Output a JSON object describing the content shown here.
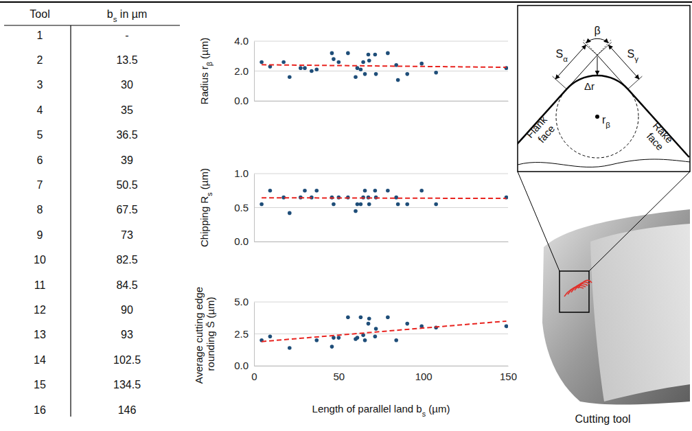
{
  "table": {
    "header": [
      "Tool",
      "bs in µm"
    ],
    "rows": [
      [
        "1",
        "-"
      ],
      [
        "2",
        "13.5"
      ],
      [
        "3",
        "30"
      ],
      [
        "4",
        "35"
      ],
      [
        "5",
        "36.5"
      ],
      [
        "6",
        "39"
      ],
      [
        "7",
        "50.5"
      ],
      [
        "8",
        "67.5"
      ],
      [
        "9",
        "73"
      ],
      [
        "10",
        "82.5"
      ],
      [
        "11",
        "84.5"
      ],
      [
        "12",
        "90"
      ],
      [
        "13",
        "93"
      ],
      [
        "14",
        "102.5"
      ],
      [
        "15",
        "134.5"
      ],
      [
        "16",
        "146"
      ]
    ]
  },
  "chart_data": [
    {
      "type": "scatter",
      "ylabel": "Radius rβ (µm)",
      "xlim": [
        0,
        150
      ],
      "ylim": [
        0,
        4
      ],
      "yticks": [
        {
          "value": 0,
          "label": "0.0"
        },
        {
          "value": 2,
          "label": "2.0"
        },
        {
          "value": 4,
          "label": "4.0"
        }
      ],
      "grid": true,
      "tick_labels": "y",
      "series": [
        {
          "type": "scatter",
          "marker": "circle",
          "color": "#1f4e79",
          "x": [
            4.5,
            9.5,
            17.5,
            21,
            27.5,
            30,
            34,
            37,
            46,
            47,
            50,
            55.5,
            60,
            61,
            63,
            64.5,
            65.5,
            67.5,
            68,
            71.5,
            72,
            79,
            84,
            85,
            90.5,
            99,
            107.5,
            149
          ],
          "values": [
            2.6,
            2.3,
            2.6,
            1.6,
            2.2,
            2.2,
            2.0,
            2.1,
            3.2,
            2.8,
            2.6,
            3.2,
            1.6,
            2.2,
            2.1,
            2.6,
            1.8,
            3.1,
            2.7,
            3.1,
            1.8,
            3.2,
            2.4,
            1.4,
            1.8,
            2.5,
            1.9,
            2.2
          ]
        },
        {
          "type": "line",
          "line_style": "dashed",
          "color": "#e8231f",
          "x": [
            4.5,
            149
          ],
          "values": [
            2.42,
            2.25
          ]
        }
      ]
    },
    {
      "type": "scatter",
      "ylabel": "Chipping Rs (µm)",
      "xlim": [
        0,
        150
      ],
      "ylim": [
        0,
        1
      ],
      "yticks": [
        {
          "value": 0,
          "label": "0.0"
        },
        0.5,
        {
          "value": 1,
          "label": "1.0"
        }
      ],
      "grid": true,
      "tick_labels": "y",
      "series": [
        {
          "type": "scatter",
          "marker": "circle",
          "color": "#1f4e79",
          "x": [
            4.5,
            9.5,
            17.5,
            21,
            27.5,
            30,
            34,
            37,
            46,
            47,
            50,
            55.5,
            60,
            61,
            63,
            64.5,
            65.5,
            67.5,
            68,
            71.5,
            72,
            79,
            84,
            85,
            90.5,
            99,
            107.5,
            149
          ],
          "values": [
            0.55,
            0.75,
            0.65,
            0.42,
            0.65,
            0.75,
            0.65,
            0.75,
            0.65,
            0.55,
            0.65,
            0.65,
            0.45,
            0.55,
            0.55,
            0.65,
            0.75,
            0.65,
            0.55,
            0.75,
            0.65,
            0.75,
            0.65,
            0.55,
            0.55,
            0.75,
            0.55,
            0.65
          ]
        },
        {
          "type": "line",
          "line_style": "dashed",
          "color": "#e8231f",
          "x": [
            4.5,
            149
          ],
          "values": [
            0.645,
            0.635
          ]
        }
      ]
    },
    {
      "type": "scatter",
      "ylabel": "Average cutting edge rounding S̄ (µm)",
      "xlabel": "Length of parallel land bs (µm)",
      "xlim": [
        0,
        150
      ],
      "xticks": [
        0,
        50,
        100,
        150
      ],
      "ylim": [
        0,
        5
      ],
      "yticks": [
        {
          "value": 0,
          "label": "0.0"
        },
        2.5,
        {
          "value": 5,
          "label": "5.0"
        }
      ],
      "grid": true,
      "series": [
        {
          "type": "scatter",
          "marker": "circle",
          "color": "#1f4e79",
          "x": [
            4.5,
            9.5,
            21,
            37,
            46,
            47,
            50,
            55.5,
            60,
            61,
            63,
            64.5,
            65.5,
            67.5,
            68,
            71.5,
            72,
            79,
            84,
            90.5,
            99,
            107.5,
            149
          ],
          "values": [
            2.0,
            2.3,
            1.4,
            2.0,
            1.5,
            2.2,
            2.2,
            3.8,
            2.1,
            2.2,
            3.8,
            2.4,
            2.0,
            3.3,
            3.7,
            2.3,
            2.9,
            3.8,
            2.0,
            3.3,
            3.1,
            3.0,
            3.1
          ]
        },
        {
          "type": "line",
          "line_style": "dashed",
          "color": "#e8231f",
          "x": [
            4.5,
            149
          ],
          "values": [
            1.9,
            3.5
          ]
        }
      ]
    }
  ],
  "diagram": {
    "s_alpha": "Sα",
    "s_gamma": "Sγ",
    "beta": "β",
    "delta_r": "Δr",
    "r_beta": "rβ",
    "flank": "Flank face",
    "rake": "Rake face"
  },
  "photo": {
    "caption": "Cutting tool"
  }
}
